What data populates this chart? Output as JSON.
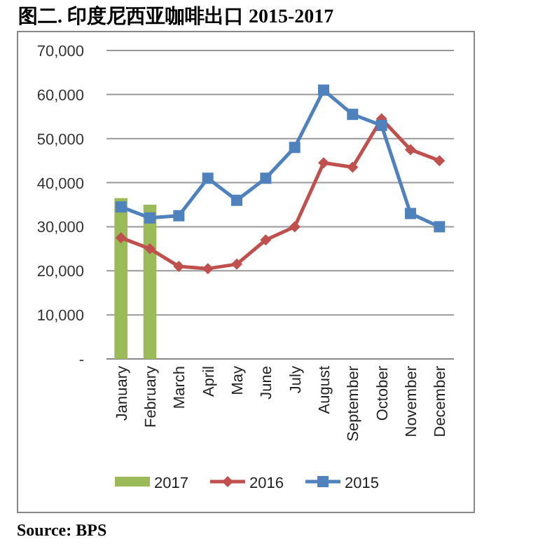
{
  "chart_data": {
    "type": "line",
    "title": "图二. 印度尼西亚咖啡出口 2015-2017",
    "categories": [
      "January",
      "February",
      "March",
      "April",
      "May",
      "June",
      "July",
      "August",
      "September",
      "October",
      "November",
      "December"
    ],
    "series": [
      {
        "name": "2017",
        "type": "bar",
        "color": "#9bbb59",
        "values": [
          36500,
          35000,
          null,
          null,
          null,
          null,
          null,
          null,
          null,
          null,
          null,
          null
        ]
      },
      {
        "name": "2016",
        "color": "#c0504d",
        "marker": "diamond",
        "values": [
          27500,
          25000,
          21000,
          20500,
          21500,
          27000,
          30000,
          44500,
          43500,
          54500,
          47500,
          45000
        ]
      },
      {
        "name": "2015",
        "color": "#4f81bd",
        "marker": "square",
        "values": [
          34500,
          32000,
          32500,
          41000,
          36000,
          41000,
          48000,
          61000,
          55500,
          53000,
          33000,
          30000
        ]
      }
    ],
    "ylim": [
      0,
      70000
    ],
    "yticks": [
      {
        "value": 0,
        "label": "-"
      },
      {
        "value": 10000,
        "label": "10,000"
      },
      {
        "value": 20000,
        "label": "20,000"
      },
      {
        "value": 30000,
        "label": "30,000"
      },
      {
        "value": 40000,
        "label": "40,000"
      },
      {
        "value": 50000,
        "label": "50,000"
      },
      {
        "value": 60000,
        "label": "60,000"
      },
      {
        "value": 70000,
        "label": "70,000"
      }
    ],
    "grid": "y",
    "legend": "bottom",
    "annotations": [
      "Source: BPS"
    ]
  }
}
